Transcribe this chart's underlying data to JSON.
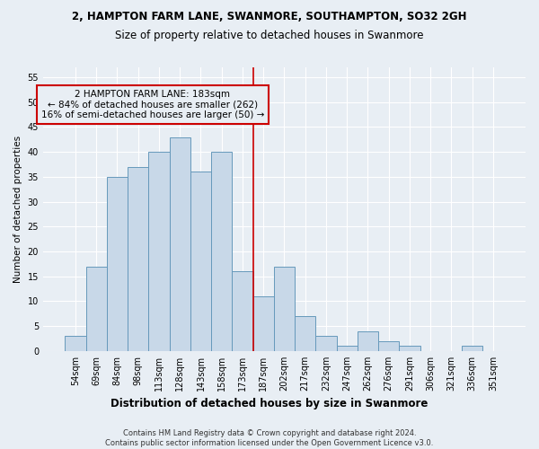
{
  "title_line1": "2, HAMPTON FARM LANE, SWANMORE, SOUTHAMPTON, SO32 2GH",
  "title_line2": "Size of property relative to detached houses in Swanmore",
  "xlabel": "Distribution of detached houses by size in Swanmore",
  "ylabel": "Number of detached properties",
  "bins": [
    "54sqm",
    "69sqm",
    "84sqm",
    "98sqm",
    "113sqm",
    "128sqm",
    "143sqm",
    "158sqm",
    "173sqm",
    "187sqm",
    "202sqm",
    "217sqm",
    "232sqm",
    "247sqm",
    "262sqm",
    "276sqm",
    "291sqm",
    "306sqm",
    "321sqm",
    "336sqm",
    "351sqm"
  ],
  "values": [
    3,
    17,
    35,
    37,
    40,
    43,
    36,
    40,
    16,
    11,
    17,
    7,
    3,
    1,
    4,
    2,
    1,
    0,
    0,
    1,
    0
  ],
  "bar_color": "#c8d8e8",
  "bar_edge_color": "#6699bb",
  "vline_pos": 8.5,
  "vline_label": "2 HAMPTON FARM LANE: 183sqm",
  "annotation_line2": "← 84% of detached houses are smaller (262)",
  "annotation_line3": "16% of semi-detached houses are larger (50) →",
  "vline_color": "#cc0000",
  "annotation_box_edge": "#cc0000",
  "ylim": [
    0,
    57
  ],
  "yticks": [
    0,
    5,
    10,
    15,
    20,
    25,
    30,
    35,
    40,
    45,
    50,
    55
  ],
  "footer_line1": "Contains HM Land Registry data © Crown copyright and database right 2024.",
  "footer_line2": "Contains public sector information licensed under the Open Government Licence v3.0.",
  "bg_color": "#e8eef4",
  "grid_color": "#ffffff",
  "title1_fontsize": 8.5,
  "title2_fontsize": 8.5,
  "ylabel_fontsize": 7.5,
  "xlabel_fontsize": 8.5,
  "tick_fontsize": 7,
  "annotation_fontsize": 7.5,
  "footer_fontsize": 6.0
}
